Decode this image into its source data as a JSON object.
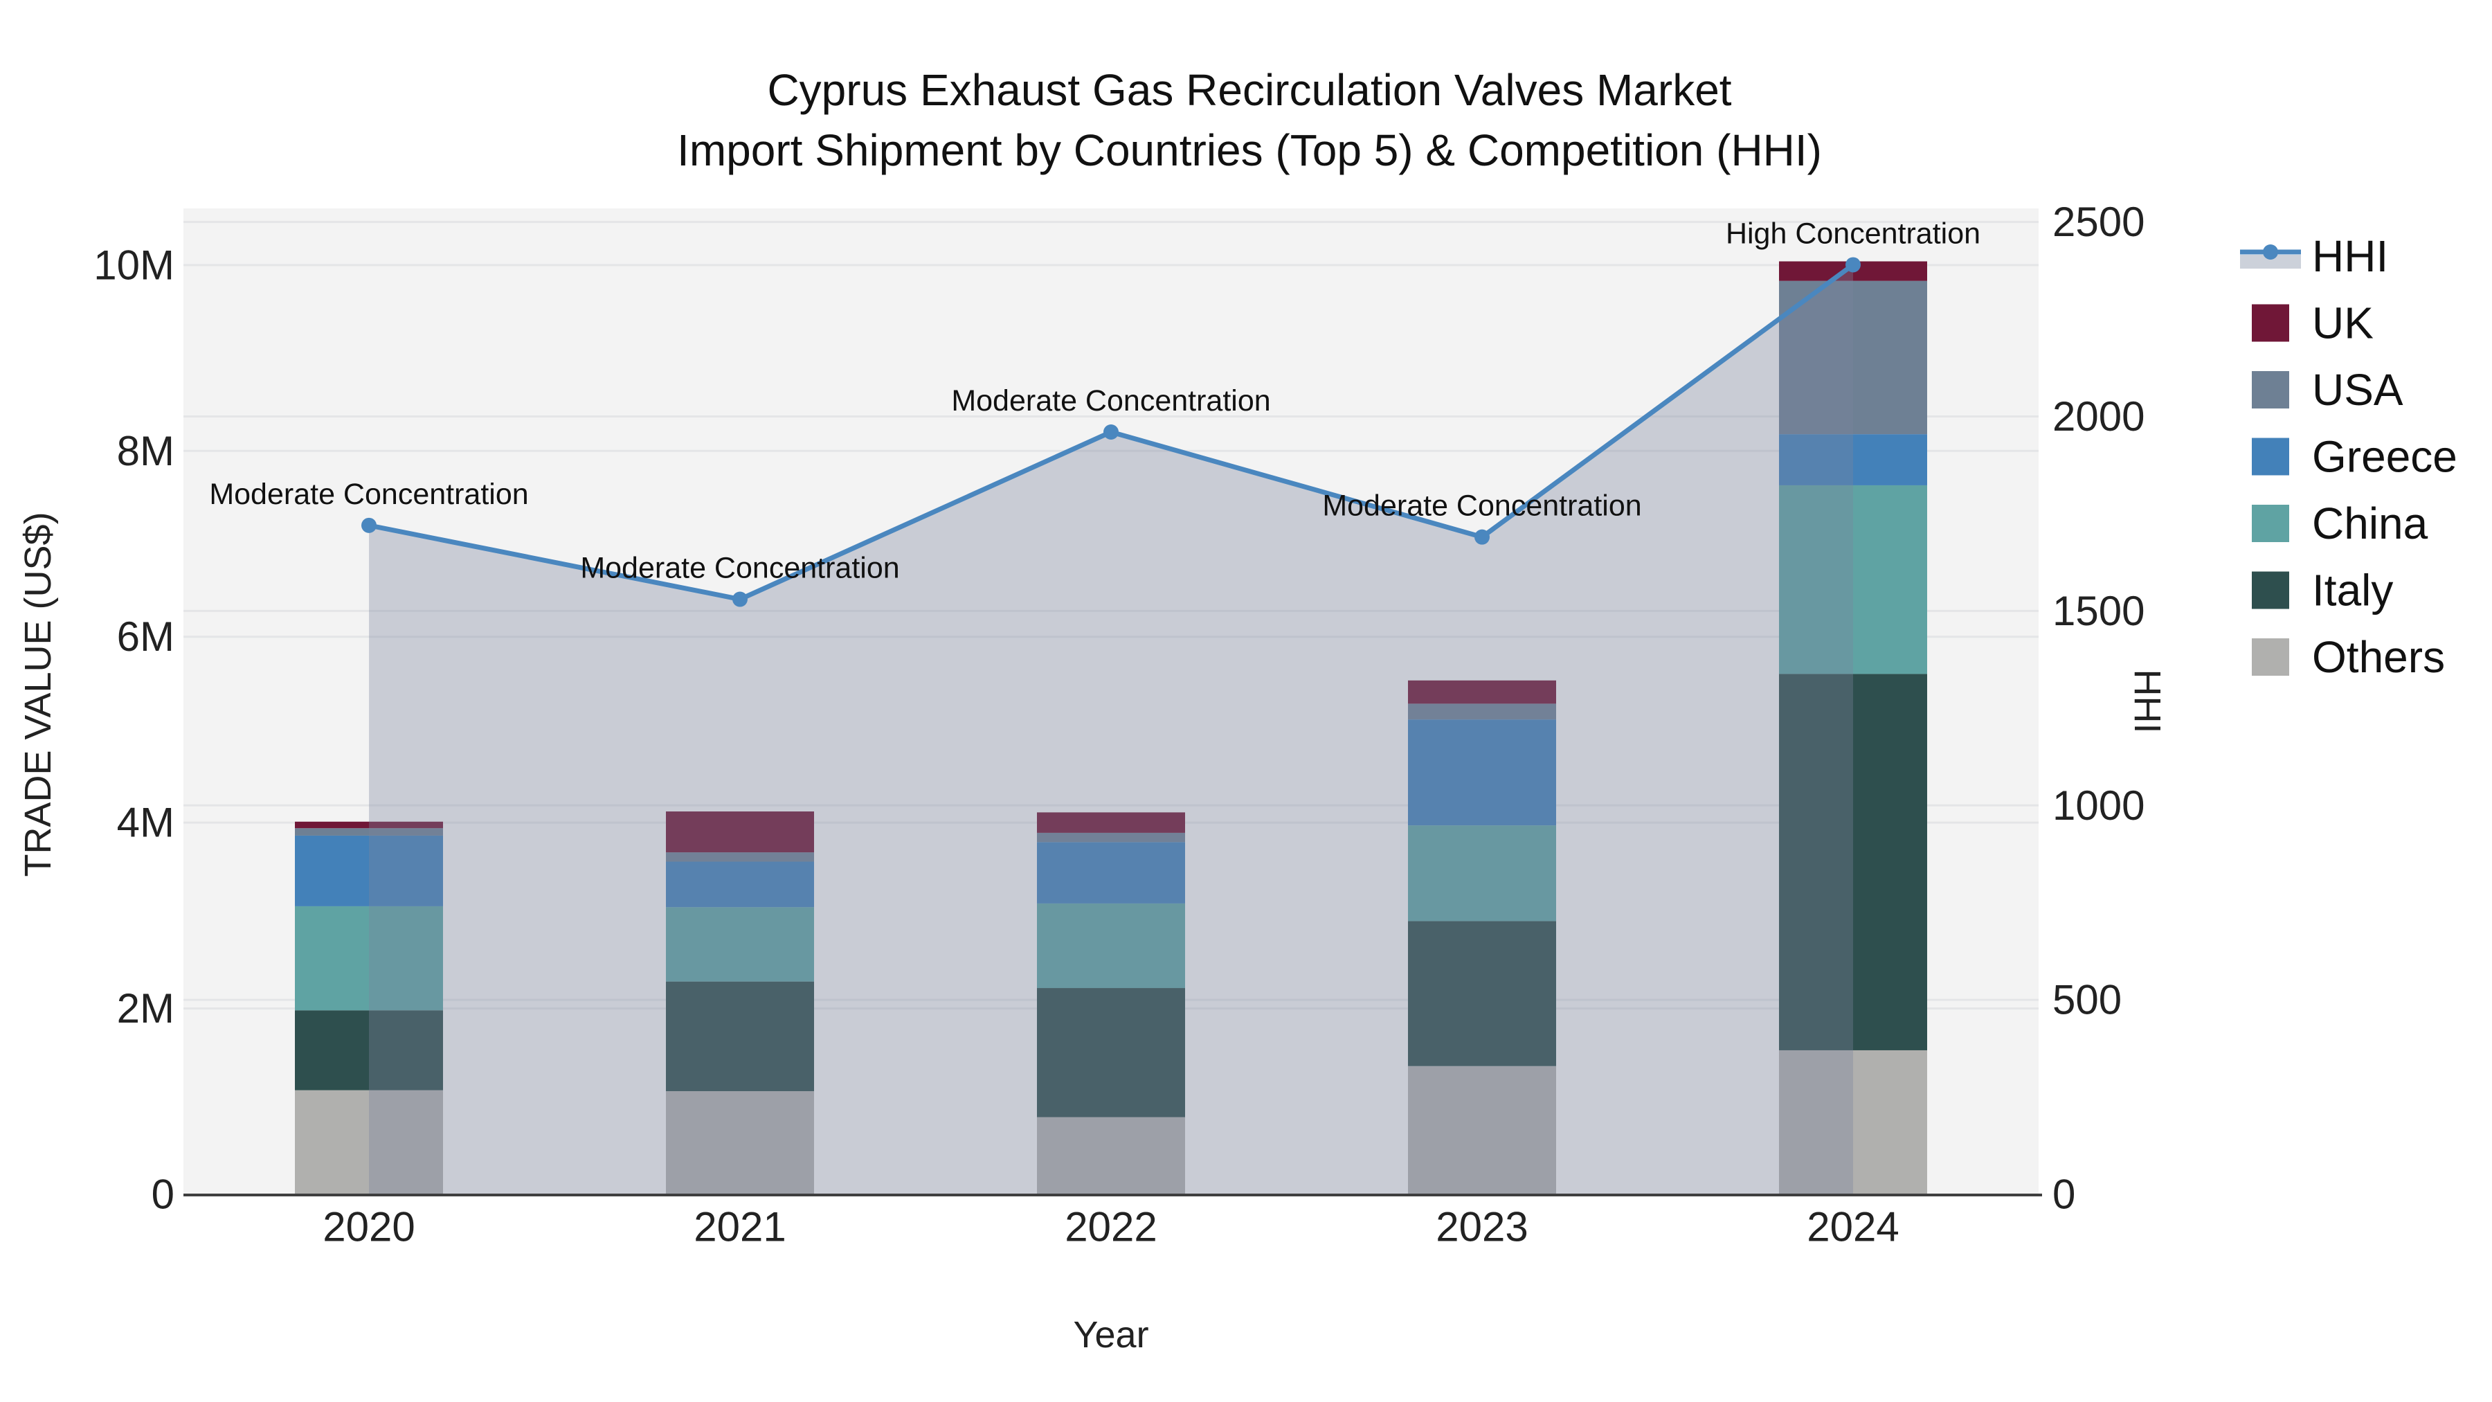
{
  "title": {
    "line1": "Cyprus Exhaust Gas Recirculation Valves Market",
    "line2": "Import Shipment by Countries (Top 5) & Competition (HHI)"
  },
  "axes": {
    "x": {
      "title": "Year",
      "ticks": [
        "2020",
        "2021",
        "2022",
        "2023",
        "2024"
      ]
    },
    "left": {
      "title": "TRADE VALUE (US$)",
      "ticks": [
        "0",
        "2M",
        "4M",
        "6M",
        "8M",
        "10M"
      ],
      "tick_values": [
        0,
        2,
        4,
        6,
        8,
        10
      ]
    },
    "right": {
      "title": "HHI",
      "ticks": [
        "0",
        "500",
        "1000",
        "1500",
        "2000",
        "2500"
      ],
      "tick_values": [
        0,
        500,
        1000,
        1500,
        2000,
        2500
      ]
    }
  },
  "chart_data": {
    "type": "composite",
    "subtypes": [
      "stacked-bar",
      "line",
      "area"
    ],
    "categories": [
      "2020",
      "2021",
      "2022",
      "2023",
      "2024"
    ],
    "bar_value_unit": "Million US$",
    "stack_order_bottom_to_top": [
      "Others",
      "Italy",
      "China",
      "Greece",
      "USA",
      "UK"
    ],
    "series": [
      {
        "name": "UK",
        "values": [
          0.07,
          0.44,
          0.22,
          0.25,
          0.21
        ]
      },
      {
        "name": "USA",
        "values": [
          0.08,
          0.1,
          0.1,
          0.17,
          1.65
        ]
      },
      {
        "name": "Greece",
        "values": [
          0.76,
          0.49,
          0.66,
          1.14,
          0.55
        ]
      },
      {
        "name": "China",
        "values": [
          1.12,
          0.8,
          0.91,
          1.03,
          2.03
        ]
      },
      {
        "name": "Italy",
        "values": [
          0.86,
          1.18,
          1.39,
          1.56,
          4.05
        ]
      },
      {
        "name": "Others",
        "values": [
          1.12,
          1.11,
          0.83,
          1.38,
          1.55
        ]
      }
    ],
    "bar_totals": [
      4.01,
      4.12,
      4.11,
      5.53,
      10.04
    ],
    "line_series": {
      "name": "HHI",
      "values": [
        1720,
        1530,
        1960,
        1690,
        2390
      ]
    },
    "annotations": [
      {
        "category": "2020",
        "text": "Moderate Concentration"
      },
      {
        "category": "2021",
        "text": "Moderate Concentration"
      },
      {
        "category": "2022",
        "text": "Moderate Concentration"
      },
      {
        "category": "2023",
        "text": "Moderate Concentration"
      },
      {
        "category": "2024",
        "text": "High Concentration"
      }
    ],
    "axis_ranges": {
      "left_millions": [
        0,
        10.61
      ],
      "right_hhi": [
        0,
        2535
      ]
    },
    "grid": true,
    "legend_position": "right"
  },
  "legend": {
    "items": [
      {
        "label": "HHI",
        "swatch": "line"
      },
      {
        "label": "UK",
        "swatch": "square"
      },
      {
        "label": "USA",
        "swatch": "square"
      },
      {
        "label": "Greece",
        "swatch": "square"
      },
      {
        "label": "China",
        "swatch": "square"
      },
      {
        "label": "Italy",
        "swatch": "square"
      },
      {
        "label": "Others",
        "swatch": "square"
      }
    ]
  },
  "colors": {
    "UK": "#701737",
    "USA": "#6e8094",
    "Greece": "#4381b9",
    "China": "#5fa3a3",
    "Italy": "#2e4f4e",
    "Others": "#b0b0ae",
    "hhi_line": "#4a87bf",
    "area_fill": "rgba(122,133,159,0.35)",
    "legend_area_swatch": "#ccd1da",
    "plot_bg": "#f3f3f3",
    "grid": "#e4e5e7",
    "axis_line": "#3f3f3f",
    "text": "#1a1a1a"
  }
}
